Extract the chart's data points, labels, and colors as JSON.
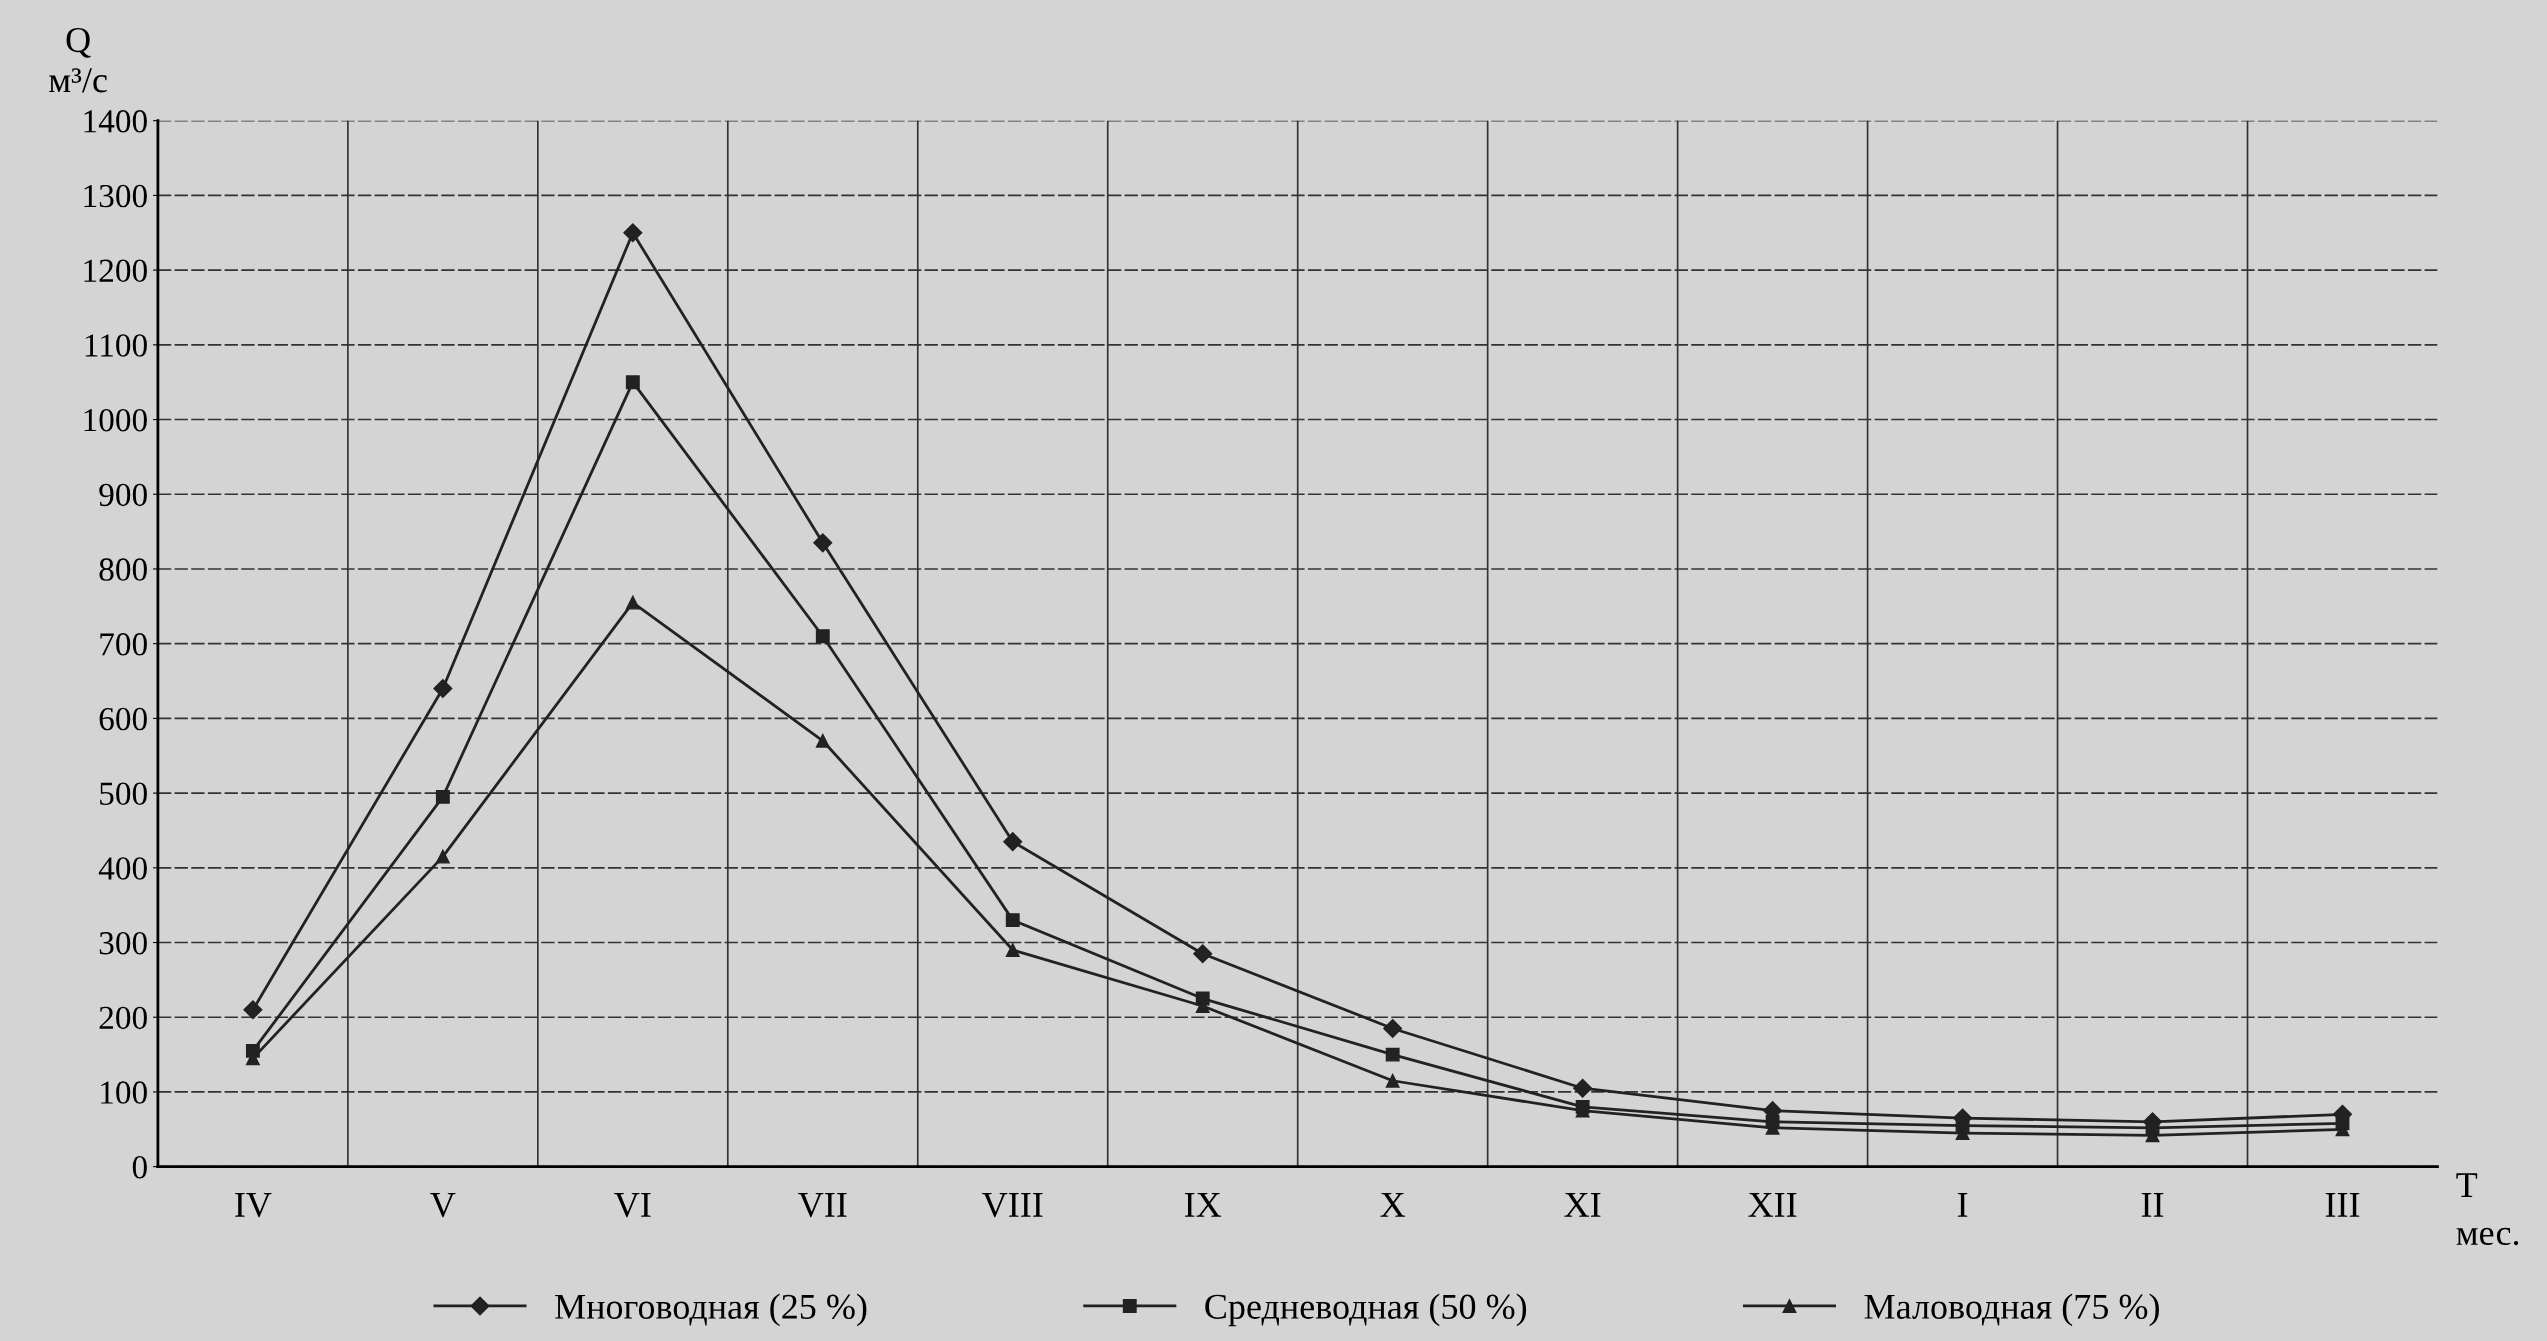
{
  "chart_data": {
    "type": "line",
    "ylabel": "Q\nм³/с",
    "xlabel": "T\nмес.",
    "categories": [
      "IV",
      "V",
      "VI",
      "VII",
      "VIII",
      "IX",
      "X",
      "XI",
      "XII",
      "I",
      "II",
      "III"
    ],
    "series": [
      {
        "name": "Многоводная (25 %)",
        "color": "#222222",
        "marker": "diamond",
        "values": [
          210,
          640,
          1250,
          835,
          435,
          285,
          185,
          105,
          75,
          65,
          60,
          70
        ]
      },
      {
        "name": "Средневодная (50 %)",
        "color": "#222222",
        "marker": "square",
        "values": [
          155,
          495,
          1050,
          710,
          330,
          225,
          150,
          80,
          60,
          55,
          52,
          58
        ]
      },
      {
        "name": "Маловодная (75 %)",
        "color": "#222222",
        "marker": "triangle",
        "values": [
          145,
          415,
          755,
          570,
          290,
          215,
          115,
          75,
          52,
          45,
          42,
          50
        ]
      }
    ],
    "ylim": [
      0,
      1400
    ],
    "yticks": [
      0,
      100,
      200,
      300,
      400,
      500,
      600,
      700,
      800,
      900,
      1000,
      1100,
      1200,
      1300,
      1400
    ],
    "grid": true,
    "legend": "bottom",
    "line_style": "solid"
  }
}
